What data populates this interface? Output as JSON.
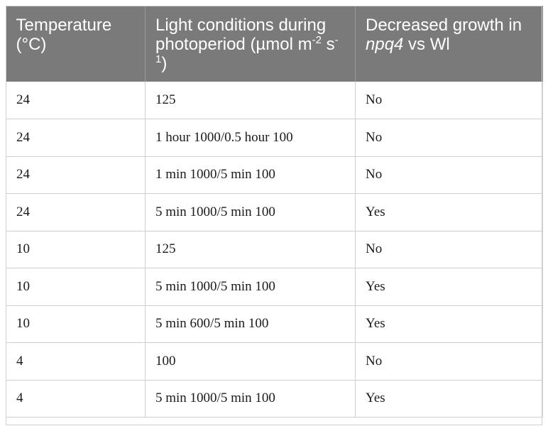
{
  "table": {
    "headers": {
      "temperature": "Temperature (°C)",
      "light_prefix": "Light conditions during photoperiod (µmol m",
      "light_sup1": "-2",
      "light_mid": " s",
      "light_sup2": "-1",
      "light_suffix": ")",
      "growth_prefix": "Decreased growth in ",
      "growth_italic": "npq4",
      "growth_suffix": " vs Wl"
    },
    "rows": [
      {
        "temperature": "24",
        "light": "125",
        "decreased": "No"
      },
      {
        "temperature": "24",
        "light": "1 hour 1000/0.5 hour 100",
        "decreased": "No"
      },
      {
        "temperature": "24",
        "light": "1 min 1000/5 min 100",
        "decreased": "No"
      },
      {
        "temperature": "24",
        "light": "5 min 1000/5 min 100",
        "decreased": "Yes"
      },
      {
        "temperature": "10",
        "light": "125",
        "decreased": "No"
      },
      {
        "temperature": "10",
        "light": "5 min 1000/5 min 100",
        "decreased": "Yes"
      },
      {
        "temperature": "10",
        "light": "5 min 600/5 min 100",
        "decreased": "Yes"
      },
      {
        "temperature": "4",
        "light": "100",
        "decreased": "No"
      },
      {
        "temperature": "4",
        "light": "5 min 1000/5 min 100",
        "decreased": "Yes"
      }
    ]
  }
}
